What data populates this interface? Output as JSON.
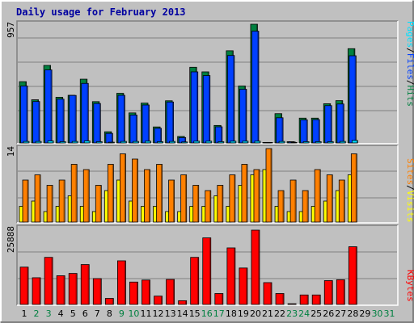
{
  "chart_data": {
    "type": "bar",
    "title": "Daily usage for February 2013",
    "categories": [
      "1",
      "2",
      "3",
      "4",
      "5",
      "6",
      "7",
      "8",
      "9",
      "10",
      "11",
      "12",
      "13",
      "14",
      "15",
      "16",
      "17",
      "18",
      "19",
      "20",
      "21",
      "22",
      "23",
      "24",
      "25",
      "26",
      "27",
      "28",
      "29",
      "30",
      "31"
    ],
    "weekend_days": [
      2,
      3,
      9,
      10,
      16,
      17,
      23,
      24,
      30,
      31
    ],
    "colors": {
      "hits": "#008040",
      "files": "#0040ff",
      "pages": "#00e0ff",
      "visits": "#ffff00",
      "sites": "#ff8000",
      "kbytes": "#ff0000",
      "weekday_label": "#000000",
      "weekend_label": "#008040"
    },
    "panels": [
      {
        "id": "hits-files",
        "scale_max_label": "957",
        "ylim": [
          0,
          957
        ],
        "axis_label_parts": [
          {
            "text": "Pages",
            "color": "#00e0ff"
          },
          {
            "text": "/",
            "color": "#000000"
          },
          {
            "text": "Files",
            "color": "#0040ff"
          },
          {
            "text": "/",
            "color": "#000000"
          },
          {
            "text": "Hits",
            "color": "#008040"
          }
        ],
        "series": [
          {
            "name": "Hits",
            "color": "#008040",
            "values": [
              494,
              348,
              625,
              368,
              384,
              514,
              333,
              90,
              400,
              242,
              321,
              129,
              340,
              52,
              610,
              573,
              141,
              743,
              459,
              957,
              4,
              236,
              10,
              200,
              200,
              316,
              341,
              760,
              0,
              0,
              0
            ]
          },
          {
            "name": "Files",
            "color": "#0040ff",
            "values": [
              459,
              334,
              589,
              353,
              383,
              480,
              318,
              77,
              384,
              225,
              306,
              118,
              330,
              43,
              573,
              543,
              130,
              705,
              433,
              901,
              4,
              203,
              8,
              186,
              188,
              301,
              314,
              703,
              0,
              0,
              0
            ]
          },
          {
            "name": "Pages",
            "color": "#00e0ff",
            "values": [
              12,
              12,
              16,
              10,
              12,
              16,
              10,
              6,
              12,
              12,
              14,
              10,
              12,
              8,
              14,
              14,
              10,
              14,
              14,
              14,
              4,
              12,
              4,
              10,
              10,
              10,
              12,
              20,
              0,
              0,
              0
            ]
          }
        ]
      },
      {
        "id": "visits-sites",
        "scale_max_label": "14",
        "ylim": [
          0,
          14
        ],
        "axis_label_parts": [
          {
            "text": "Sites",
            "color": "#ff8000"
          },
          {
            "text": "/",
            "color": "#000000"
          },
          {
            "text": "Visits",
            "color": "#ffff00"
          }
        ],
        "series": [
          {
            "name": "Visits",
            "color": "#ffff00",
            "values": [
              3,
              4,
              2,
              3,
              5,
              3,
              2,
              6,
              8,
              4,
              3,
              3,
              2,
              2,
              3,
              3,
              5,
              3,
              7,
              9,
              10,
              3,
              2,
              2,
              3,
              4,
              6,
              9,
              0,
              0,
              0
            ]
          },
          {
            "name": "Sites",
            "color": "#ff8000",
            "values": [
              8,
              9,
              7,
              8,
              11,
              10,
              7,
              11,
              13,
              12,
              10,
              11,
              8,
              9,
              7,
              6,
              7,
              9,
              11,
              10,
              14,
              6,
              8,
              6,
              10,
              9,
              8,
              13,
              0,
              0,
              0
            ]
          }
        ]
      },
      {
        "id": "kbytes",
        "scale_max_label": "25888",
        "ylim": [
          0,
          25888
        ],
        "axis_label_parts": [
          {
            "text": "KBytes",
            "color": "#ff0000"
          }
        ],
        "series": [
          {
            "name": "KBytes",
            "color": "#ff0000",
            "values": [
              13000,
              9300,
              16400,
              10000,
              10800,
              13900,
              9000,
              2100,
              15200,
              7800,
              8500,
              2900,
              8700,
              1300,
              16400,
              23200,
              3800,
              19700,
              12700,
              25888,
              7600,
              3800,
              250,
              3300,
              3300,
              8300,
              8600,
              20100,
              0,
              0,
              0
            ]
          }
        ]
      }
    ]
  }
}
